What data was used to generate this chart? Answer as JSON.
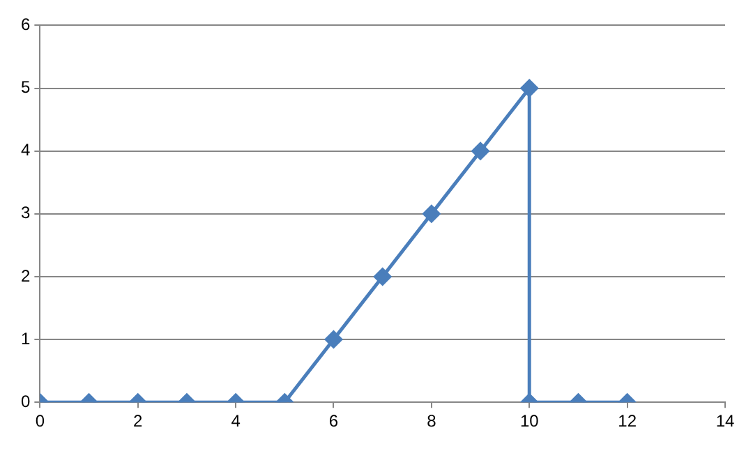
{
  "chart_data": {
    "type": "line",
    "series": [
      {
        "color": "#4a7ebb",
        "x": [
          0,
          1,
          2,
          3,
          4,
          5,
          6,
          7,
          8,
          9,
          10,
          10,
          11,
          12
        ],
        "values": [
          0,
          0,
          0,
          0,
          0,
          0,
          1,
          2,
          3,
          4,
          5,
          0,
          0,
          0
        ]
      }
    ],
    "xlim": [
      0,
      14
    ],
    "xticks": [
      0,
      2,
      4,
      6,
      8,
      10,
      12,
      14
    ],
    "ylim": [
      0,
      6
    ],
    "yticks": [
      0,
      1,
      2,
      3,
      4,
      5,
      6
    ],
    "grid": "y",
    "legend": false,
    "marker": "diamond",
    "line_style": "solid"
  }
}
